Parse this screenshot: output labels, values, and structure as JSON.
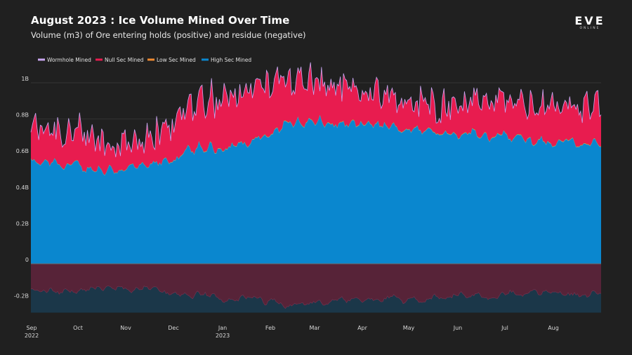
{
  "chart_data": {
    "type": "area",
    "title": "August 2023 : Ice Volume Mined Over Time",
    "subtitle": "Volume (m3) of Ore entering holds (positive) and residue (negative)",
    "xlabel": "",
    "ylabel": "",
    "ylim": [
      -0.3,
      1.1
    ],
    "y_unit": "B m3",
    "yticks": [
      {
        "value": 1.0,
        "label": "1B"
      },
      {
        "value": 0.8,
        "label": "0.8B"
      },
      {
        "value": 0.6,
        "label": "0.6B"
      },
      {
        "value": 0.4,
        "label": "0.4B"
      },
      {
        "value": 0.2,
        "label": "0.2B"
      },
      {
        "value": 0.0,
        "label": "0"
      },
      {
        "value": -0.2,
        "label": "-0.2B"
      }
    ],
    "xticks": [
      {
        "label": "Sep",
        "sub": "2022"
      },
      {
        "label": "Oct",
        "sub": ""
      },
      {
        "label": "Nov",
        "sub": ""
      },
      {
        "label": "Dec",
        "sub": ""
      },
      {
        "label": "Jan",
        "sub": "2023"
      },
      {
        "label": "Feb",
        "sub": ""
      },
      {
        "label": "Mar",
        "sub": ""
      },
      {
        "label": "Apr",
        "sub": ""
      },
      {
        "label": "May",
        "sub": ""
      },
      {
        "label": "Jun",
        "sub": ""
      },
      {
        "label": "Jul",
        "sub": ""
      },
      {
        "label": "Aug",
        "sub": ""
      }
    ],
    "x_months": [
      "2022-09",
      "2022-10",
      "2022-11",
      "2022-12",
      "2023-01",
      "2023-02",
      "2023-03",
      "2023-04",
      "2023-05",
      "2023-06",
      "2023-07",
      "2023-08",
      "2023-09"
    ],
    "legend": [
      "Wormhole Mined",
      "Null Sec Mined",
      "Low Sec Mined",
      "High Sec Mined"
    ],
    "legend_position": "top-left",
    "colors": {
      "wormhole": "#c9a6f0",
      "nullsec": "#e81c4f",
      "lowsec": "#f08a30",
      "highsec": "#0a87cf",
      "residue": "#5b2238",
      "residue_band": "#1b3a4e",
      "grid": "#333333",
      "zero_line": "#6a6a6a"
    },
    "series": [
      {
        "name": "High Sec Mined",
        "stack": "positive",
        "monthly_avg": [
          0.55,
          0.52,
          0.53,
          0.63,
          0.66,
          0.78,
          0.77,
          0.76,
          0.73,
          0.72,
          0.68,
          0.66
        ]
      },
      {
        "name": "Low Sec Mined",
        "stack": "positive",
        "monthly_avg": [
          0.003,
          0.003,
          0.003,
          0.004,
          0.004,
          0.004,
          0.004,
          0.004,
          0.004,
          0.004,
          0.004,
          0.004
        ]
      },
      {
        "name": "Null Sec Mined",
        "stack": "positive",
        "monthly_avg": [
          0.17,
          0.14,
          0.12,
          0.24,
          0.28,
          0.22,
          0.18,
          0.15,
          0.12,
          0.17,
          0.17,
          0.18
        ]
      },
      {
        "name": "Wormhole Mined",
        "stack": "positive",
        "monthly_avg": [
          0.002,
          0.002,
          0.002,
          0.002,
          0.002,
          0.002,
          0.002,
          0.002,
          0.002,
          0.002,
          0.002,
          0.002
        ]
      },
      {
        "name": "Residue",
        "stack": "negative",
        "monthly_avg": [
          -0.15,
          -0.14,
          -0.14,
          -0.18,
          -0.19,
          -0.22,
          -0.21,
          -0.2,
          -0.18,
          -0.18,
          -0.16,
          -0.16
        ]
      }
    ]
  },
  "logo": {
    "main": "EVE",
    "sub": "ONLINE"
  }
}
